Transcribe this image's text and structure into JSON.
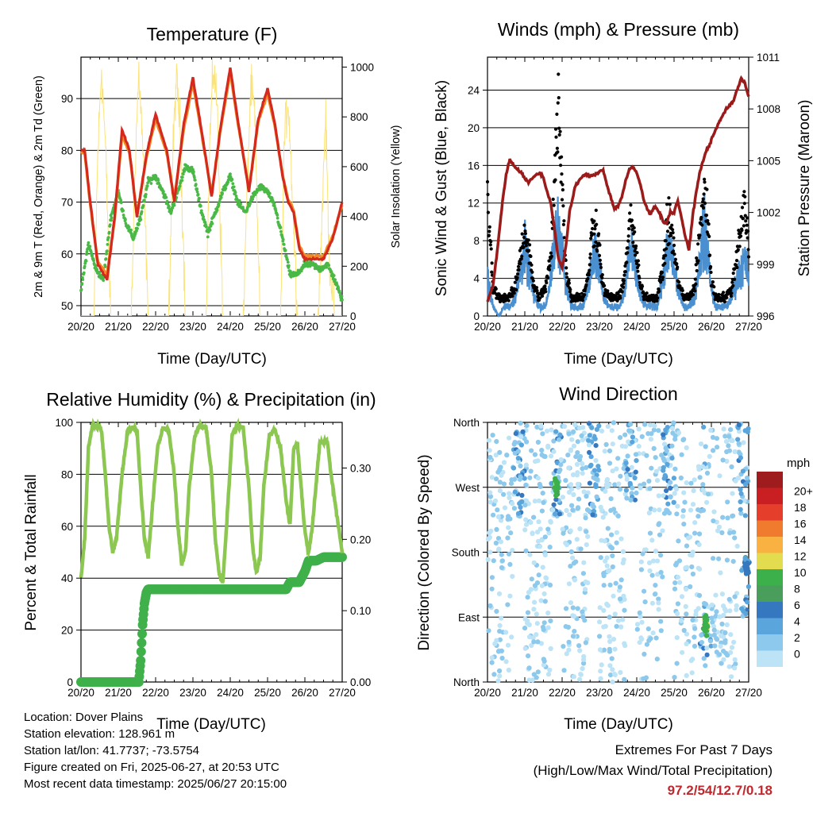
{
  "panels": {
    "temperature": {
      "title": "Temperature (F)",
      "ylabel_left": "2m & 9m T (Red, Orange) & 2m Td (Green)",
      "ylabel_right": "Solar Insolation (Yellow)",
      "xlabel": "Time (Day/UTC)"
    },
    "wind": {
      "title": "Winds (mph) & Pressure (mb)",
      "ylabel_left": "Sonic Wind & Gust (Blue, Black)",
      "ylabel_right": "Station Pressure (Maroon)",
      "xlabel": "Time (Day/UTC)"
    },
    "humidity": {
      "title": "Relative Humidity (%) & Precipitation (in)",
      "ylabel_left": "Percent & Total Rainfall",
      "xlabel": "Time (Day/UTC)"
    },
    "direction": {
      "title": "Wind Direction",
      "ylabel_left": "Direction (Colored By Speed)",
      "xlabel": "Time (Day/UTC)",
      "legend_title": "mph"
    }
  },
  "info": {
    "location": "Location: Dover Plains",
    "elevation": "Station elevation: 128.961 m",
    "latlon": "Station lat/lon: 41.7737; -73.5754",
    "created": "Figure created on Fri, 2025-06-27, at 20:53 UTC",
    "recent": "Most recent data timestamp: 2025/06/27 20:15:00"
  },
  "extremes": {
    "heading": "Extremes For Past 7 Days",
    "subheading": "(High/Low/Max Wind/Total Precipitation)",
    "values": "97.2/54/12.7/0.18"
  },
  "colors": {
    "t2m": "#d42a1e",
    "t9m": "#f28a25",
    "td": "#4ab846",
    "solar": "#fbe27a",
    "wind": "#4a90d0",
    "gust": "#000000",
    "pressure": "#9b1b1b",
    "rh": "#8bc751",
    "precip": "#3fb04a",
    "speed_scale": [
      "#bde3f6",
      "#8cc9ec",
      "#5aa5dc",
      "#3678bf",
      "#4a9e5b",
      "#3cb04a",
      "#e2dc4e",
      "#f9b242",
      "#f07a2e",
      "#e53e2b",
      "#c91f23",
      "#9e1b1e"
    ]
  },
  "chart_data": [
    {
      "type": "line",
      "title": "Temperature (F)",
      "xlabel": "Time (Day/UTC)",
      "ylabel": "2m & 9m T (Red, Orange) & 2m Td (Green)",
      "ylabel_right": "Solar Insolation (Yellow)",
      "x_ticks": [
        "20/20",
        "21/20",
        "22/20",
        "23/20",
        "24/20",
        "25/20",
        "26/20",
        "27/20"
      ],
      "ylim": [
        48,
        98
      ],
      "y_ticks": [
        50,
        60,
        70,
        80,
        90
      ],
      "ylim_right": [
        0,
        1040
      ],
      "y_ticks_right": [
        0,
        200,
        400,
        600,
        800,
        1000
      ],
      "grid": "horizontal",
      "series": [
        {
          "x": [
            0,
            0.1,
            0.25,
            0.45,
            0.7,
            0.9,
            1.1,
            1.3,
            1.5,
            1.75,
            2.0,
            2.3,
            2.5,
            2.75,
            3.0,
            3.25,
            3.5,
            3.75,
            4.0,
            4.2,
            4.5,
            4.75,
            5.0,
            5.2,
            5.4,
            5.55,
            5.7,
            5.85,
            6.0,
            6.25,
            6.5,
            6.75,
            7.0
          ],
          "values": [
            80,
            80,
            70,
            58,
            55,
            67,
            84,
            80,
            67,
            79,
            87,
            80,
            70,
            85,
            94,
            83,
            71,
            85,
            96,
            86,
            72,
            86,
            92,
            85,
            75,
            70,
            68,
            61,
            59,
            59,
            59,
            63,
            70
          ]
        },
        {
          "x": [
            0,
            0.1,
            0.25,
            0.45,
            0.7,
            0.9,
            1.1,
            1.3,
            1.5,
            1.75,
            2.0,
            2.3,
            2.5,
            2.75,
            3.0,
            3.25,
            3.5,
            3.75,
            4.0,
            4.2,
            4.5,
            4.75,
            5.0,
            5.2,
            5.4,
            5.55,
            5.7,
            5.85,
            6.0,
            6.25,
            6.5,
            6.75,
            7.0
          ],
          "values": [
            79.5,
            79.5,
            69.5,
            58.5,
            56,
            66.5,
            83,
            79.5,
            67.5,
            78.5,
            86,
            79.5,
            70.5,
            84,
            93,
            82.5,
            71.5,
            84.5,
            95,
            85.5,
            72.5,
            85.5,
            91,
            84.5,
            75.5,
            70.5,
            68.5,
            61.5,
            59.5,
            59.5,
            59.5,
            63.5,
            69.5
          ]
        },
        {
          "x": [
            0,
            0.2,
            0.4,
            0.6,
            0.8,
            1.0,
            1.2,
            1.4,
            1.6,
            1.8,
            2.0,
            2.2,
            2.4,
            2.6,
            2.8,
            3.0,
            3.2,
            3.4,
            3.6,
            3.8,
            4.0,
            4.2,
            4.4,
            4.6,
            4.8,
            5.0,
            5.2,
            5.4,
            5.6,
            5.8,
            6.0,
            6.2,
            6.4,
            6.6,
            6.8,
            7.0
          ],
          "values": [
            53,
            62,
            57,
            55,
            67,
            72,
            66,
            63,
            67,
            74,
            75,
            72,
            68,
            72,
            77,
            76,
            69,
            64,
            68,
            72,
            75,
            70,
            68,
            71,
            73,
            72,
            69,
            63,
            56,
            56,
            58,
            58,
            57,
            58,
            55,
            51
          ]
        },
        {
          "x": [
            0,
            0.35,
            0.45,
            0.55,
            0.65,
            0.8,
            1.35,
            1.45,
            1.55,
            1.65,
            1.8,
            2.35,
            2.45,
            2.55,
            2.65,
            2.8,
            3.35,
            3.45,
            3.55,
            3.65,
            3.8,
            4.35,
            4.45,
            4.55,
            4.65,
            4.8,
            5.35,
            5.45,
            5.55,
            5.65,
            5.8,
            6.35,
            6.45,
            6.55,
            6.65,
            6.8,
            7.0
          ],
          "values": [
            0,
            0,
            650,
            1000,
            700,
            0,
            0,
            620,
            980,
            700,
            0,
            0,
            600,
            950,
            780,
            0,
            0,
            700,
            1000,
            850,
            0,
            0,
            500,
            920,
            820,
            0,
            0,
            700,
            880,
            550,
            0,
            0,
            350,
            820,
            250,
            0,
            0
          ]
        }
      ]
    },
    {
      "type": "line",
      "title": "Winds (mph) & Pressure (mb)",
      "xlabel": "Time (Day/UTC)",
      "ylabel": "Sonic Wind & Gust (Blue, Black)",
      "ylabel_right": "Station Pressure (Maroon)",
      "x_ticks": [
        "20/20",
        "21/20",
        "22/20",
        "23/20",
        "24/20",
        "25/20",
        "26/20",
        "27/20"
      ],
      "ylim": [
        0,
        27.5
      ],
      "y_ticks": [
        0,
        4,
        8,
        12,
        16,
        20,
        24
      ],
      "ylim_right": [
        996,
        1011
      ],
      "y_ticks_right": [
        996,
        999,
        1002,
        1005,
        1008,
        1011
      ],
      "grid": "horizontal",
      "series": [
        {
          "name_hint": "wind",
          "x": [
            0,
            0.15,
            0.3,
            0.45,
            0.6,
            0.75,
            0.9,
            1.0,
            1.1,
            1.25,
            1.4,
            1.55,
            1.7,
            1.8,
            1.9,
            2.0,
            2.1,
            2.25,
            2.4,
            2.55,
            2.7,
            2.8,
            2.9,
            3.0,
            3.1,
            3.25,
            3.4,
            3.55,
            3.7,
            3.8,
            3.9,
            4.0,
            4.1,
            4.25,
            4.4,
            4.55,
            4.7,
            4.8,
            4.9,
            5.0,
            5.1,
            5.25,
            5.4,
            5.55,
            5.7,
            5.8,
            5.9,
            6.0,
            6.1,
            6.25,
            6.4,
            6.55,
            6.7,
            6.8,
            6.9,
            7.0
          ],
          "values": [
            4,
            1,
            0,
            1,
            1,
            2,
            5,
            7,
            5,
            2,
            1,
            1,
            4,
            8,
            9,
            7,
            3,
            1,
            1,
            1,
            3,
            6,
            7,
            5,
            2,
            1,
            1,
            1,
            3,
            7,
            6,
            4,
            2,
            1,
            1,
            1,
            4,
            6,
            7,
            5,
            3,
            1,
            1,
            2,
            6,
            9,
            7,
            3,
            1,
            1,
            1,
            2,
            4,
            5,
            6,
            4
          ]
        },
        {
          "name_hint": "gust",
          "x": [
            0,
            0.15,
            0.3,
            0.45,
            0.6,
            0.75,
            0.9,
            1.0,
            1.1,
            1.25,
            1.4,
            1.55,
            1.7,
            1.8,
            1.9,
            2.0,
            2.1,
            2.25,
            2.4,
            2.55,
            2.7,
            2.8,
            2.9,
            3.0,
            3.1,
            3.25,
            3.4,
            3.55,
            3.7,
            3.8,
            3.9,
            4.0,
            4.1,
            4.25,
            4.4,
            4.55,
            4.7,
            4.8,
            4.9,
            5.0,
            5.1,
            5.25,
            5.4,
            5.55,
            5.7,
            5.8,
            5.9,
            6.0,
            6.1,
            6.25,
            6.4,
            6.55,
            6.7,
            6.8,
            6.9,
            7.0
          ],
          "values": [
            12,
            3,
            2,
            2,
            2,
            3,
            7,
            9,
            7,
            3,
            2,
            3,
            6,
            14,
            24,
            14,
            5,
            2,
            2,
            2,
            4,
            9,
            10,
            7,
            3,
            2,
            2,
            2,
            5,
            10,
            9,
            6,
            3,
            2,
            2,
            2,
            5,
            9,
            10,
            7,
            4,
            2,
            2,
            3,
            9,
            14,
            10,
            4,
            2,
            2,
            2,
            3,
            7,
            10,
            12,
            7
          ]
        },
        {
          "name_hint": "pressure",
          "x": [
            0,
            0.15,
            0.3,
            0.4,
            0.5,
            0.6,
            0.75,
            0.9,
            1.0,
            1.1,
            1.25,
            1.4,
            1.5,
            1.6,
            1.7,
            1.8,
            1.9,
            2.0,
            2.1,
            2.2,
            2.35,
            2.5,
            2.65,
            2.8,
            2.95,
            3.1,
            3.2,
            3.3,
            3.4,
            3.5,
            3.6,
            3.7,
            3.8,
            3.9,
            4.0,
            4.1,
            4.2,
            4.35,
            4.5,
            4.6,
            4.7,
            4.8,
            4.9,
            5.0,
            5.1,
            5.2,
            5.3,
            5.4,
            5.5,
            5.6,
            5.7,
            5.8,
            6.0,
            6.2,
            6.4,
            6.6,
            6.8,
            6.9,
            7.0
          ],
          "values": [
            996.8,
            997.8,
            1000.5,
            1002.6,
            1004.2,
            1005.1,
            1004.6,
            1004.3,
            1004.0,
            1003.7,
            1004.1,
            1004.3,
            1004.0,
            1003.2,
            1002.5,
            1001.0,
            999.3,
            998.8,
            1000.0,
            1002.0,
            1003.5,
            1004.0,
            1004.2,
            1004.1,
            1004.3,
            1004.5,
            1003.6,
            1002.9,
            1002.2,
            1002.4,
            1002.9,
            1003.8,
            1004.5,
            1004.6,
            1004.3,
            1003.6,
            1002.6,
            1001.9,
            1002.4,
            1002.0,
            1001.5,
            1001.4,
            1002.0,
            1002.0,
            1002.7,
            1001.7,
            1000.6,
            999.8,
            1001.8,
            1003.3,
            1004.4,
            1005.2,
            1006.2,
            1007.2,
            1008.0,
            1008.5,
            1009.8,
            1009.5,
            1008.7
          ]
        }
      ]
    },
    {
      "type": "line",
      "title": "Relative Humidity (%) & Precipitation (in)",
      "xlabel": "Time (Day/UTC)",
      "ylabel": "Percent & Total Rainfall",
      "x_ticks": [
        "20/20",
        "21/20",
        "22/20",
        "23/20",
        "24/20",
        "25/20",
        "26/20",
        "27/20"
      ],
      "ylim": [
        0,
        100
      ],
      "y_ticks": [
        0,
        20,
        40,
        60,
        80,
        100
      ],
      "ylim_right": [
        0,
        0.364
      ],
      "y_ticks_right": [
        0.0,
        0.1,
        0.2,
        0.3
      ],
      "y_tick_labels_right": [
        "0.00",
        "0.10",
        "0.20",
        "0.30"
      ],
      "grid": "horizontal",
      "series": [
        {
          "x": [
            0,
            0.1,
            0.2,
            0.3,
            0.45,
            0.55,
            0.65,
            0.75,
            0.85,
            0.95,
            1.1,
            1.25,
            1.4,
            1.5,
            1.6,
            1.7,
            1.8,
            1.9,
            2.05,
            2.2,
            2.35,
            2.5,
            2.6,
            2.7,
            2.8,
            2.9,
            3.05,
            3.2,
            3.35,
            3.5,
            3.6,
            3.7,
            3.8,
            3.9,
            4.05,
            4.2,
            4.35,
            4.5,
            4.6,
            4.7,
            4.8,
            4.9,
            5.05,
            5.2,
            5.35,
            5.5,
            5.6,
            5.7,
            5.8,
            5.9,
            6.0,
            6.1,
            6.2,
            6.4,
            6.6,
            6.7,
            6.8,
            6.9,
            7.0
          ],
          "values": [
            40,
            55,
            90,
            98,
            99,
            97,
            80,
            60,
            50,
            55,
            80,
            97,
            98,
            97,
            75,
            55,
            48,
            65,
            90,
            98,
            97,
            80,
            60,
            45,
            50,
            75,
            95,
            99,
            98,
            80,
            55,
            42,
            38,
            60,
            95,
            99,
            98,
            75,
            52,
            42,
            48,
            75,
            95,
            97,
            90,
            70,
            60,
            90,
            92,
            75,
            58,
            50,
            60,
            92,
            93,
            80,
            70,
            60,
            50
          ]
        },
        {
          "x": [
            0,
            0.5,
            1.0,
            1.55,
            1.6,
            1.65,
            1.7,
            1.75,
            1.8,
            2.0,
            2.5,
            3.0,
            3.5,
            4.0,
            4.5,
            5.0,
            5.5,
            5.6,
            5.85,
            6.0,
            6.1,
            6.3,
            6.5,
            6.75,
            7.0
          ],
          "values": [
            0,
            0,
            0,
            0,
            0.03,
            0.08,
            0.11,
            0.125,
            0.13,
            0.13,
            0.13,
            0.13,
            0.13,
            0.13,
            0.13,
            0.13,
            0.13,
            0.14,
            0.14,
            0.155,
            0.17,
            0.17,
            0.175,
            0.175,
            0.175
          ]
        }
      ]
    },
    {
      "type": "scatter",
      "title": "Wind Direction",
      "xlabel": "Time (Day/UTC)",
      "ylabel": "Direction (Colored By Speed)",
      "x_ticks": [
        "20/20",
        "21/20",
        "22/20",
        "23/20",
        "24/20",
        "25/20",
        "26/20",
        "27/20"
      ],
      "y_ticks": [
        "North",
        "East",
        "South",
        "West",
        "North"
      ],
      "ylim": [
        0,
        360
      ],
      "grid": "horizontal",
      "legend": {
        "title": "mph",
        "labels": [
          "0",
          "2",
          "4",
          "6",
          "8",
          "10",
          "12",
          "14",
          "16",
          "18",
          "20+"
        ],
        "position": "right"
      },
      "clusters": [
        {
          "x": 1.85,
          "dir": 270,
          "speed": 11
        },
        {
          "x": 5.85,
          "dir": 80,
          "speed": 11
        },
        {
          "x": 6.95,
          "dir": 160,
          "speed": 7
        }
      ]
    }
  ]
}
